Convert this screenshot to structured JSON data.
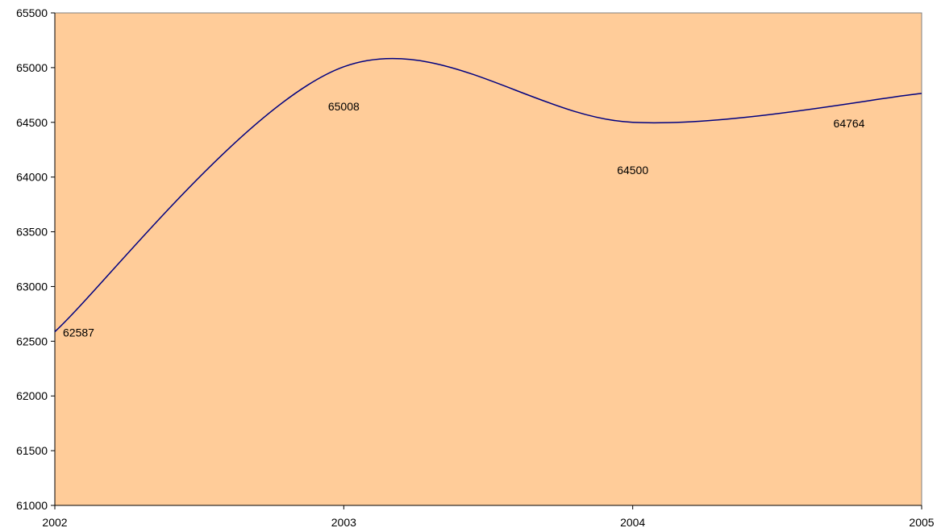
{
  "chart_data": {
    "type": "line",
    "title": "",
    "xlabel": "",
    "ylabel": "",
    "x": [
      2002,
      2003,
      2004,
      2005
    ],
    "series": [
      {
        "values": [
          62587,
          65008,
          64500,
          64764
        ]
      }
    ],
    "data_labels": [
      "62587",
      "65008",
      "64500",
      "64764"
    ],
    "x_ticks": [
      "2002",
      "2003",
      "2004",
      "2005"
    ],
    "y_ticks": [
      "61000",
      "61500",
      "62000",
      "62500",
      "63000",
      "63500",
      "64000",
      "64500",
      "65000",
      "65500"
    ],
    "xlim": [
      2002,
      2005
    ],
    "ylim": [
      61000,
      65500
    ],
    "smoothed": true,
    "grid": false,
    "legend": "none",
    "colors": {
      "plot_area": "#FFCC99",
      "line": "#000080",
      "axis": "#000000"
    }
  }
}
